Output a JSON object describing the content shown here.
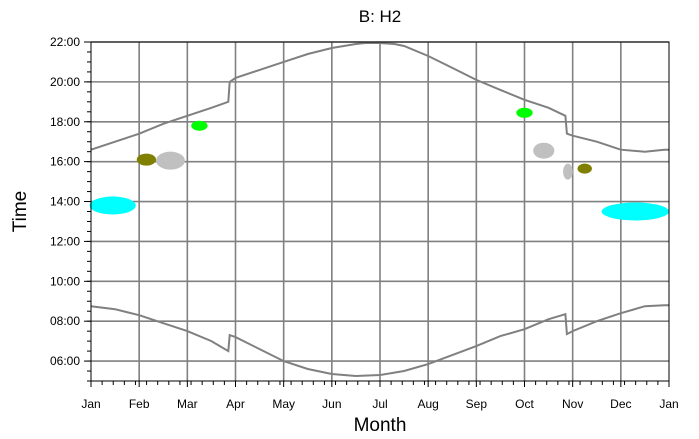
{
  "chart_data": {
    "type": "scatter",
    "title": "B: H2",
    "xlabel": "Month",
    "ylabel": "Time",
    "x_ticks": [
      "Jan",
      "Feb",
      "Mar",
      "Apr",
      "May",
      "Jun",
      "Jul",
      "Aug",
      "Sep",
      "Oct",
      "Nov",
      "Dec",
      "Jan"
    ],
    "y_ticks": [
      "06:00",
      "08:00",
      "10:00",
      "12:00",
      "14:00",
      "16:00",
      "18:00",
      "20:00",
      "22:00"
    ],
    "xlim": [
      0,
      12
    ],
    "ylim": [
      5.0,
      22.0
    ],
    "grid": true,
    "sunset_curve": {
      "name": "",
      "color": "#808080",
      "x": [
        0,
        0.5,
        1.0,
        1.5,
        2.0,
        2.5,
        2.85,
        2.88,
        3.0,
        3.5,
        4.0,
        4.5,
        5.0,
        5.5,
        5.7,
        6.0,
        6.3,
        6.5,
        7.0,
        7.5,
        8.0,
        8.5,
        9.0,
        9.5,
        9.85,
        9.88,
        10.0,
        10.5,
        11.0,
        11.5,
        11.9,
        12.0
      ],
      "y": [
        16.6,
        17.0,
        17.4,
        17.9,
        18.3,
        18.7,
        19.0,
        20.0,
        20.2,
        20.6,
        21.0,
        21.4,
        21.7,
        21.9,
        21.95,
        21.95,
        21.9,
        21.8,
        21.3,
        20.7,
        20.1,
        19.6,
        19.1,
        18.7,
        18.3,
        17.4,
        17.3,
        17.0,
        16.6,
        16.5,
        16.6,
        16.6
      ]
    },
    "sunrise_curve": {
      "name": "",
      "color": "#808080",
      "x": [
        0,
        0.5,
        1.0,
        1.5,
        2.0,
        2.5,
        2.85,
        2.88,
        3.0,
        3.5,
        4.0,
        4.5,
        5.0,
        5.5,
        6.0,
        6.5,
        7.0,
        7.5,
        8.0,
        8.5,
        9.0,
        9.5,
        9.85,
        9.88,
        10.0,
        10.5,
        11.0,
        11.5,
        11.9,
        12.0
      ],
      "y": [
        8.75,
        8.6,
        8.3,
        7.9,
        7.5,
        7.0,
        6.5,
        7.3,
        7.2,
        6.6,
        6.0,
        5.6,
        5.35,
        5.25,
        5.3,
        5.5,
        5.85,
        6.3,
        6.75,
        7.25,
        7.6,
        8.1,
        8.35,
        7.35,
        7.5,
        8.0,
        8.4,
        8.75,
        8.8,
        8.8
      ]
    },
    "clusters": [
      {
        "color": "#00ffff",
        "x": 0.45,
        "y": 13.8,
        "rx": 0.48,
        "ry": 0.45
      },
      {
        "color": "#00ffff",
        "x": 11.3,
        "y": 13.5,
        "rx": 0.7,
        "ry": 0.45
      },
      {
        "color": "#808000",
        "x": 1.15,
        "y": 16.1,
        "rx": 0.2,
        "ry": 0.3
      },
      {
        "color": "#c0c0c0",
        "x": 1.65,
        "y": 16.05,
        "rx": 0.3,
        "ry": 0.45
      },
      {
        "color": "#00ff00",
        "x": 2.25,
        "y": 17.8,
        "rx": 0.17,
        "ry": 0.25
      },
      {
        "color": "#00ff00",
        "x": 9.0,
        "y": 18.45,
        "rx": 0.17,
        "ry": 0.25
      },
      {
        "color": "#c0c0c0",
        "x": 9.4,
        "y": 16.55,
        "rx": 0.22,
        "ry": 0.4
      },
      {
        "color": "#c0c0c0",
        "x": 9.9,
        "y": 15.5,
        "rx": 0.1,
        "ry": 0.4
      },
      {
        "color": "#808000",
        "x": 10.25,
        "y": 15.65,
        "rx": 0.15,
        "ry": 0.25
      }
    ]
  }
}
